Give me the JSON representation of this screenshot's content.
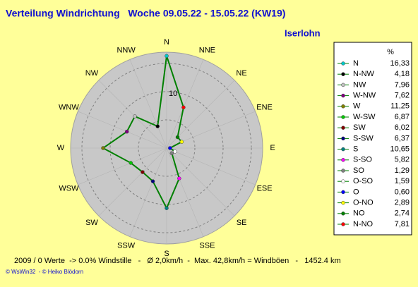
{
  "chart_data": {
    "type": "polar",
    "title": "Verteilung Windrichtung   Woche 09.05.22 - 15.05.22 (KW19)",
    "location": "Iserlohn",
    "directions": [
      "N",
      "NNE",
      "NE",
      "ENE",
      "E",
      "ESE",
      "SE",
      "SSE",
      "S",
      "SSW",
      "SW",
      "WSW",
      "W",
      "WNW",
      "NW",
      "NNW"
    ],
    "rlim": [
      0,
      17
    ],
    "rticks": [
      10
    ],
    "rgrid": [
      5,
      15
    ],
    "line_color": "#008000",
    "legend_header": "%",
    "series": [
      {
        "name": "N",
        "color": "#00c8c8",
        "value": 16.33,
        "value_label": "16,33"
      },
      {
        "name": "N-NW",
        "color": "#000000",
        "value": 4.18,
        "value_label": "4,18"
      },
      {
        "name": "NW",
        "color": "#c0c0c0",
        "value": 7.96,
        "value_label": "7,96"
      },
      {
        "name": "W-NW",
        "color": "#800080",
        "value": 7.62,
        "value_label": "7,62"
      },
      {
        "name": "W",
        "color": "#808000",
        "value": 11.25,
        "value_label": "11,25"
      },
      {
        "name": "W-SW",
        "color": "#00c800",
        "value": 6.87,
        "value_label": "6,87"
      },
      {
        "name": "SW",
        "color": "#800000",
        "value": 6.02,
        "value_label": "6,02"
      },
      {
        "name": "S-SW",
        "color": "#000080",
        "value": 6.37,
        "value_label": "6,37"
      },
      {
        "name": "S",
        "color": "#008080",
        "value": 10.65,
        "value_label": "10,65"
      },
      {
        "name": "S-SO",
        "color": "#ff00ff",
        "value": 5.82,
        "value_label": "5,82"
      },
      {
        "name": "SO",
        "color": "#808080",
        "value": 1.29,
        "value_label": "1,29"
      },
      {
        "name": "O-SO",
        "color": "#ffffff",
        "value": 1.59,
        "value_label": "1,59"
      },
      {
        "name": "O",
        "color": "#0000ff",
        "value": 0.6,
        "value_label": "0,60"
      },
      {
        "name": "O-NO",
        "color": "#ffff00",
        "value": 2.89,
        "value_label": "2,89"
      },
      {
        "name": "NO",
        "color": "#008000",
        "value": 2.74,
        "value_label": "2,74"
      },
      {
        "name": "N-NO",
        "color": "#ff0000",
        "value": 7.81,
        "value_label": "7,81"
      }
    ],
    "footer": "2009 / 0 Werte  -> 0.0% Windstille   -   Ø 2,0km/h  -  Max. 42,8km/h = Windböen   -   1452.4 km",
    "credit": "© WsWin32  - © Heiko Blödorn"
  }
}
